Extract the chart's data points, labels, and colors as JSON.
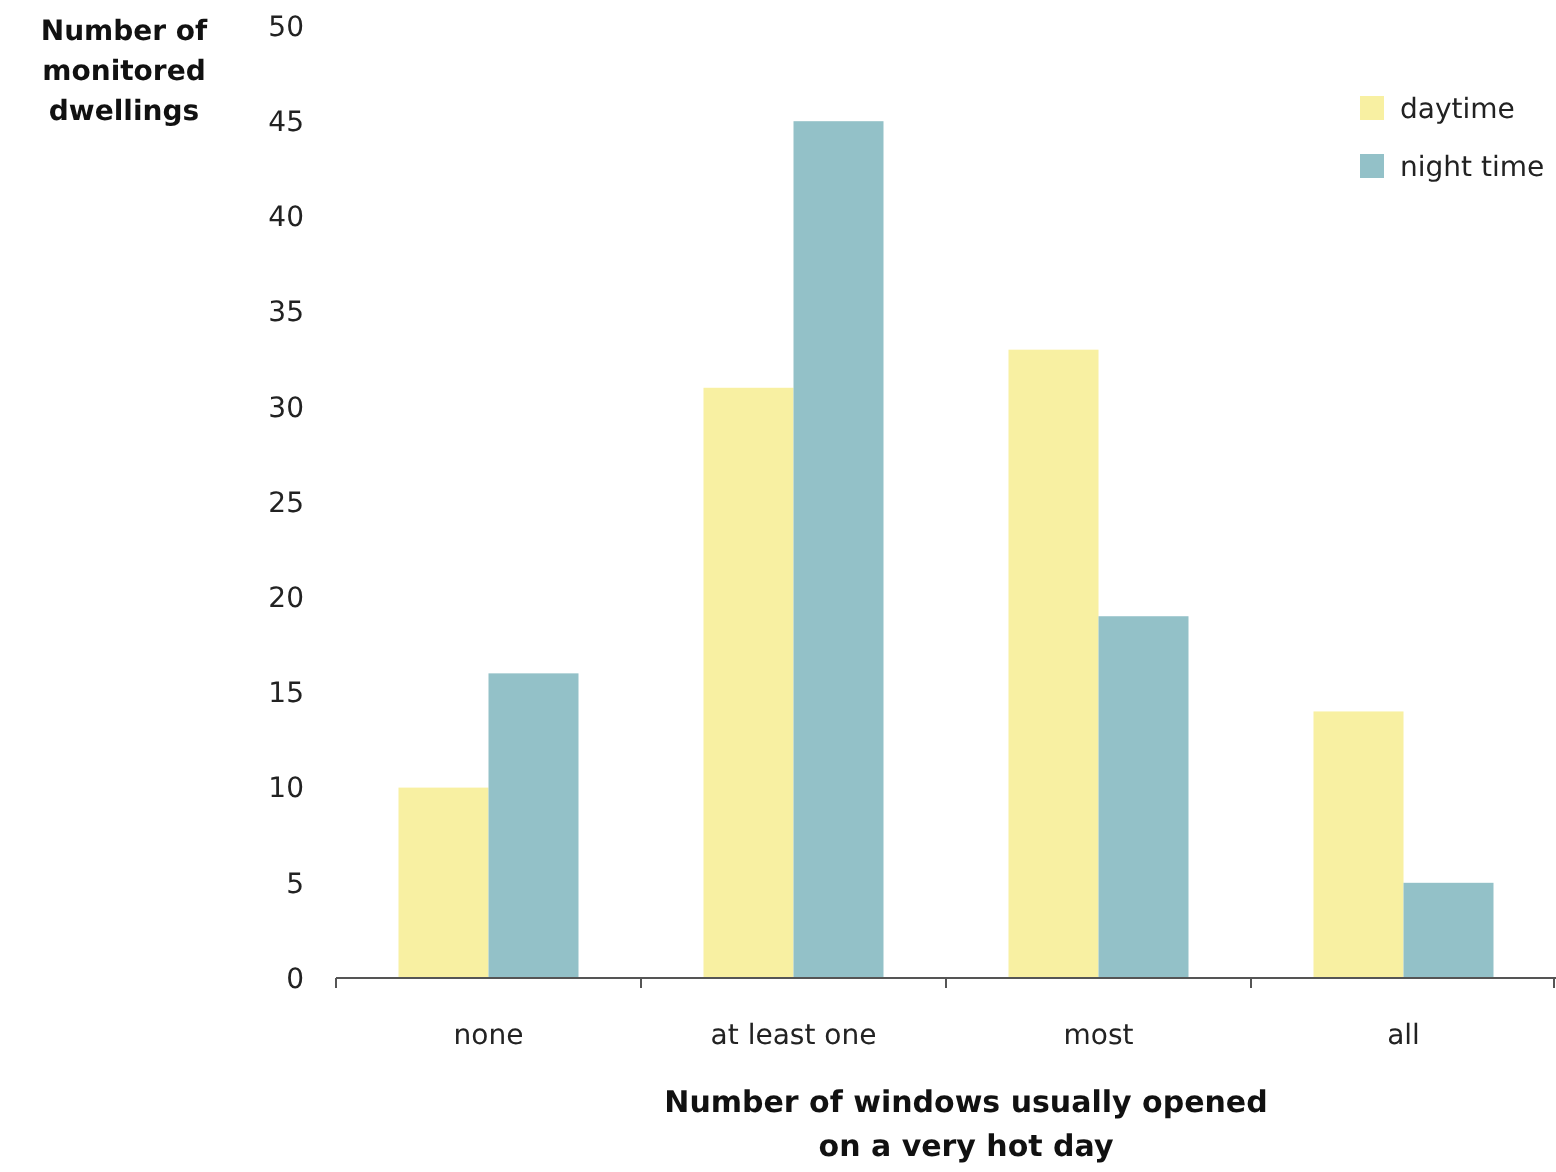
{
  "chart_data": {
    "type": "bar",
    "ylabel": "Number of\nmonitored\ndwellings",
    "xlabel": "Number of windows usually opened\non a very hot day",
    "categories": [
      "none",
      "at least one",
      "most",
      "all"
    ],
    "series": [
      {
        "name": "daytime",
        "color": "#f8f0a2",
        "values": [
          10,
          31,
          33,
          14
        ]
      },
      {
        "name": "night time",
        "color": "#93c1c8",
        "values": [
          16,
          45,
          19,
          5
        ]
      }
    ],
    "ylim": [
      0,
      50
    ],
    "yticks": [
      0,
      5,
      10,
      15,
      20,
      25,
      30,
      35,
      40,
      45,
      50
    ],
    "grid": false,
    "legend": "top right"
  }
}
